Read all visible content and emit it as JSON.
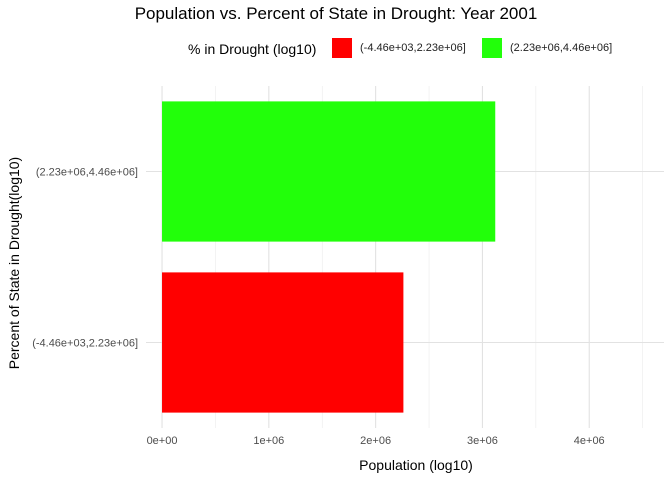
{
  "chart_data": {
    "type": "bar",
    "orientation": "horizontal",
    "title": "Population vs. Percent of State in Drought: Year  2001",
    "xlabel": "Population (log10)",
    "ylabel": "Percent of State in Drought(log10)",
    "categories": [
      "(-4.46e+03,2.23e+06]",
      "(2.23e+06,4.46e+06]"
    ],
    "values": [
      2260000,
      3120000
    ],
    "colors": [
      "#FF0000",
      "#22FF0A"
    ],
    "xlim": [
      -150000,
      4700000
    ],
    "x_ticks": [
      0,
      1000000,
      2000000,
      3000000,
      4000000
    ],
    "x_tick_labels": [
      "0e+00",
      "1e+06",
      "2e+06",
      "3e+06",
      "4e+06"
    ],
    "grid": true,
    "legend": {
      "title": "% in Drought (log10)",
      "position": "top",
      "entries": [
        {
          "label": "(-4.46e+03,2.23e+06]",
          "color": "#FF0000"
        },
        {
          "label": "(2.23e+06,4.46e+06]",
          "color": "#22FF0A"
        }
      ]
    }
  }
}
